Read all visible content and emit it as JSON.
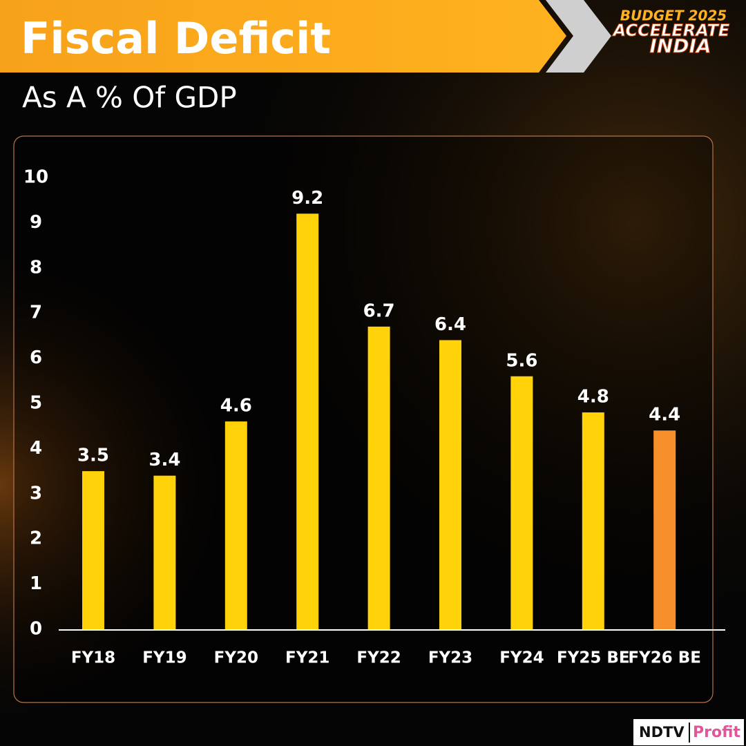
{
  "chart_data": {
    "type": "bar",
    "title": "Fiscal Deficit",
    "subtitle": "As A % Of GDP",
    "categories": [
      "FY18",
      "FY19",
      "FY20",
      "FY21",
      "FY22",
      "FY23",
      "FY24",
      "FY25 BE",
      "FY26 BE"
    ],
    "values": [
      3.5,
      3.4,
      4.6,
      9.2,
      6.7,
      6.4,
      5.6,
      4.8,
      4.4
    ],
    "colors": [
      "#ffd20a",
      "#ffd20a",
      "#ffd20a",
      "#ffd20a",
      "#ffd20a",
      "#ffd20a",
      "#ffd20a",
      "#ffd20a",
      "#f7902a"
    ],
    "ylim": [
      0,
      10
    ],
    "yticks": [
      0,
      1,
      2,
      3,
      4,
      5,
      6,
      7,
      8,
      9,
      10
    ],
    "grid": false
  },
  "branding": {
    "event_line1": "BUDGET 2025",
    "event_line2": "ACCELERATE",
    "event_line3": "INDIA",
    "logo_left": "NDTV",
    "logo_right": "Profit"
  }
}
